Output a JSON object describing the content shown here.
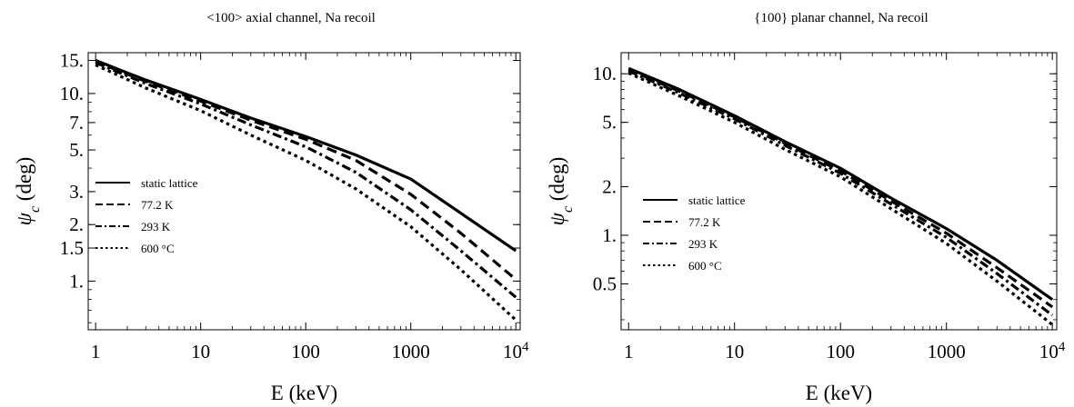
{
  "chart_data": [
    {
      "type": "line",
      "title": "<100> axial channel, Na recoil",
      "xlabel": "E (keV)",
      "ylabel_symbol": "ψ",
      "ylabel_subscript": "c",
      "ylabel_unit": "(deg)",
      "xscale": "log",
      "yscale": "log",
      "xlim": [
        0.85,
        11000
      ],
      "ylim": [
        0.55,
        16.5
      ],
      "x_ticks": [
        {
          "value": 1,
          "label": "1"
        },
        {
          "value": 10,
          "label": "10"
        },
        {
          "value": 100,
          "label": "100"
        },
        {
          "value": 1000,
          "label": "1000"
        },
        {
          "value": 10000,
          "label": "10",
          "sup": "4"
        }
      ],
      "y_ticks": [
        {
          "value": 15,
          "label": "15."
        },
        {
          "value": 10,
          "label": "10."
        },
        {
          "value": 7,
          "label": "7."
        },
        {
          "value": 5,
          "label": "5."
        },
        {
          "value": 3,
          "label": "3."
        },
        {
          "value": 2,
          "label": "2."
        },
        {
          "value": 1.5,
          "label": "1.5"
        },
        {
          "value": 1,
          "label": "1."
        }
      ],
      "legend_position": "left-middle",
      "series": [
        {
          "name": "static lattice",
          "dash": "solid",
          "x": [
            1,
            3,
            10,
            30,
            100,
            300,
            1000,
            3000,
            10000
          ],
          "y": [
            15,
            11.8,
            9.3,
            7.4,
            5.9,
            4.7,
            3.5,
            2.3,
            1.45
          ]
        },
        {
          "name": "77.2 K",
          "dash": "dashed",
          "x": [
            1,
            3,
            10,
            30,
            100,
            300,
            1000,
            3000,
            10000
          ],
          "y": [
            14.8,
            11.6,
            9.1,
            7.2,
            5.7,
            4.4,
            2.9,
            1.8,
            1.02
          ]
        },
        {
          "name": "293 K",
          "dash": "dashdot",
          "x": [
            1,
            3,
            10,
            30,
            100,
            300,
            1000,
            3000,
            10000
          ],
          "y": [
            14.6,
            11.3,
            8.8,
            6.8,
            5.2,
            3.8,
            2.4,
            1.45,
            0.82
          ]
        },
        {
          "name": "600 °C",
          "dash": "dotted",
          "x": [
            1,
            3,
            10,
            30,
            100,
            300,
            1000,
            3000,
            10000
          ],
          "y": [
            14.2,
            10.7,
            8.1,
            6.0,
            4.4,
            3.1,
            1.95,
            1.15,
            0.62
          ]
        }
      ]
    },
    {
      "type": "line",
      "title": "{100} planar channel, Na recoil",
      "xlabel": "E (keV)",
      "ylabel_symbol": "ψ",
      "ylabel_subscript": "c",
      "ylabel_unit": "(deg)",
      "xscale": "log",
      "yscale": "log",
      "xlim": [
        0.85,
        11000
      ],
      "ylim": [
        0.26,
        13.5
      ],
      "x_ticks": [
        {
          "value": 1,
          "label": "1"
        },
        {
          "value": 10,
          "label": "10"
        },
        {
          "value": 100,
          "label": "100"
        },
        {
          "value": 1000,
          "label": "1000"
        },
        {
          "value": 10000,
          "label": "10",
          "sup": "4"
        }
      ],
      "y_ticks": [
        {
          "value": 10,
          "label": "10."
        },
        {
          "value": 5,
          "label": "5."
        },
        {
          "value": 2,
          "label": "2."
        },
        {
          "value": 1,
          "label": "1."
        },
        {
          "value": 0.5,
          "label": "0.5"
        }
      ],
      "legend_position": "left-middle",
      "series": [
        {
          "name": "static lattice",
          "dash": "solid",
          "x": [
            1,
            3,
            10,
            30,
            100,
            300,
            1000,
            3000,
            10000
          ],
          "y": [
            10.8,
            8.0,
            5.5,
            3.8,
            2.6,
            1.7,
            1.1,
            0.7,
            0.4
          ]
        },
        {
          "name": "77.2 K",
          "dash": "dashed",
          "x": [
            1,
            3,
            10,
            30,
            100,
            300,
            1000,
            3000,
            10000
          ],
          "y": [
            10.6,
            7.8,
            5.4,
            3.7,
            2.5,
            1.63,
            1.03,
            0.63,
            0.36
          ]
        },
        {
          "name": "293 K",
          "dash": "dashdot",
          "x": [
            1,
            3,
            10,
            30,
            100,
            300,
            1000,
            3000,
            10000
          ],
          "y": [
            10.4,
            7.6,
            5.25,
            3.6,
            2.42,
            1.56,
            0.97,
            0.58,
            0.32
          ]
        },
        {
          "name": "600 °C",
          "dash": "dotted",
          "x": [
            1,
            3,
            10,
            30,
            100,
            300,
            1000,
            3000,
            10000
          ],
          "y": [
            10.1,
            7.3,
            5.0,
            3.4,
            2.3,
            1.46,
            0.89,
            0.52,
            0.28
          ]
        }
      ]
    }
  ]
}
